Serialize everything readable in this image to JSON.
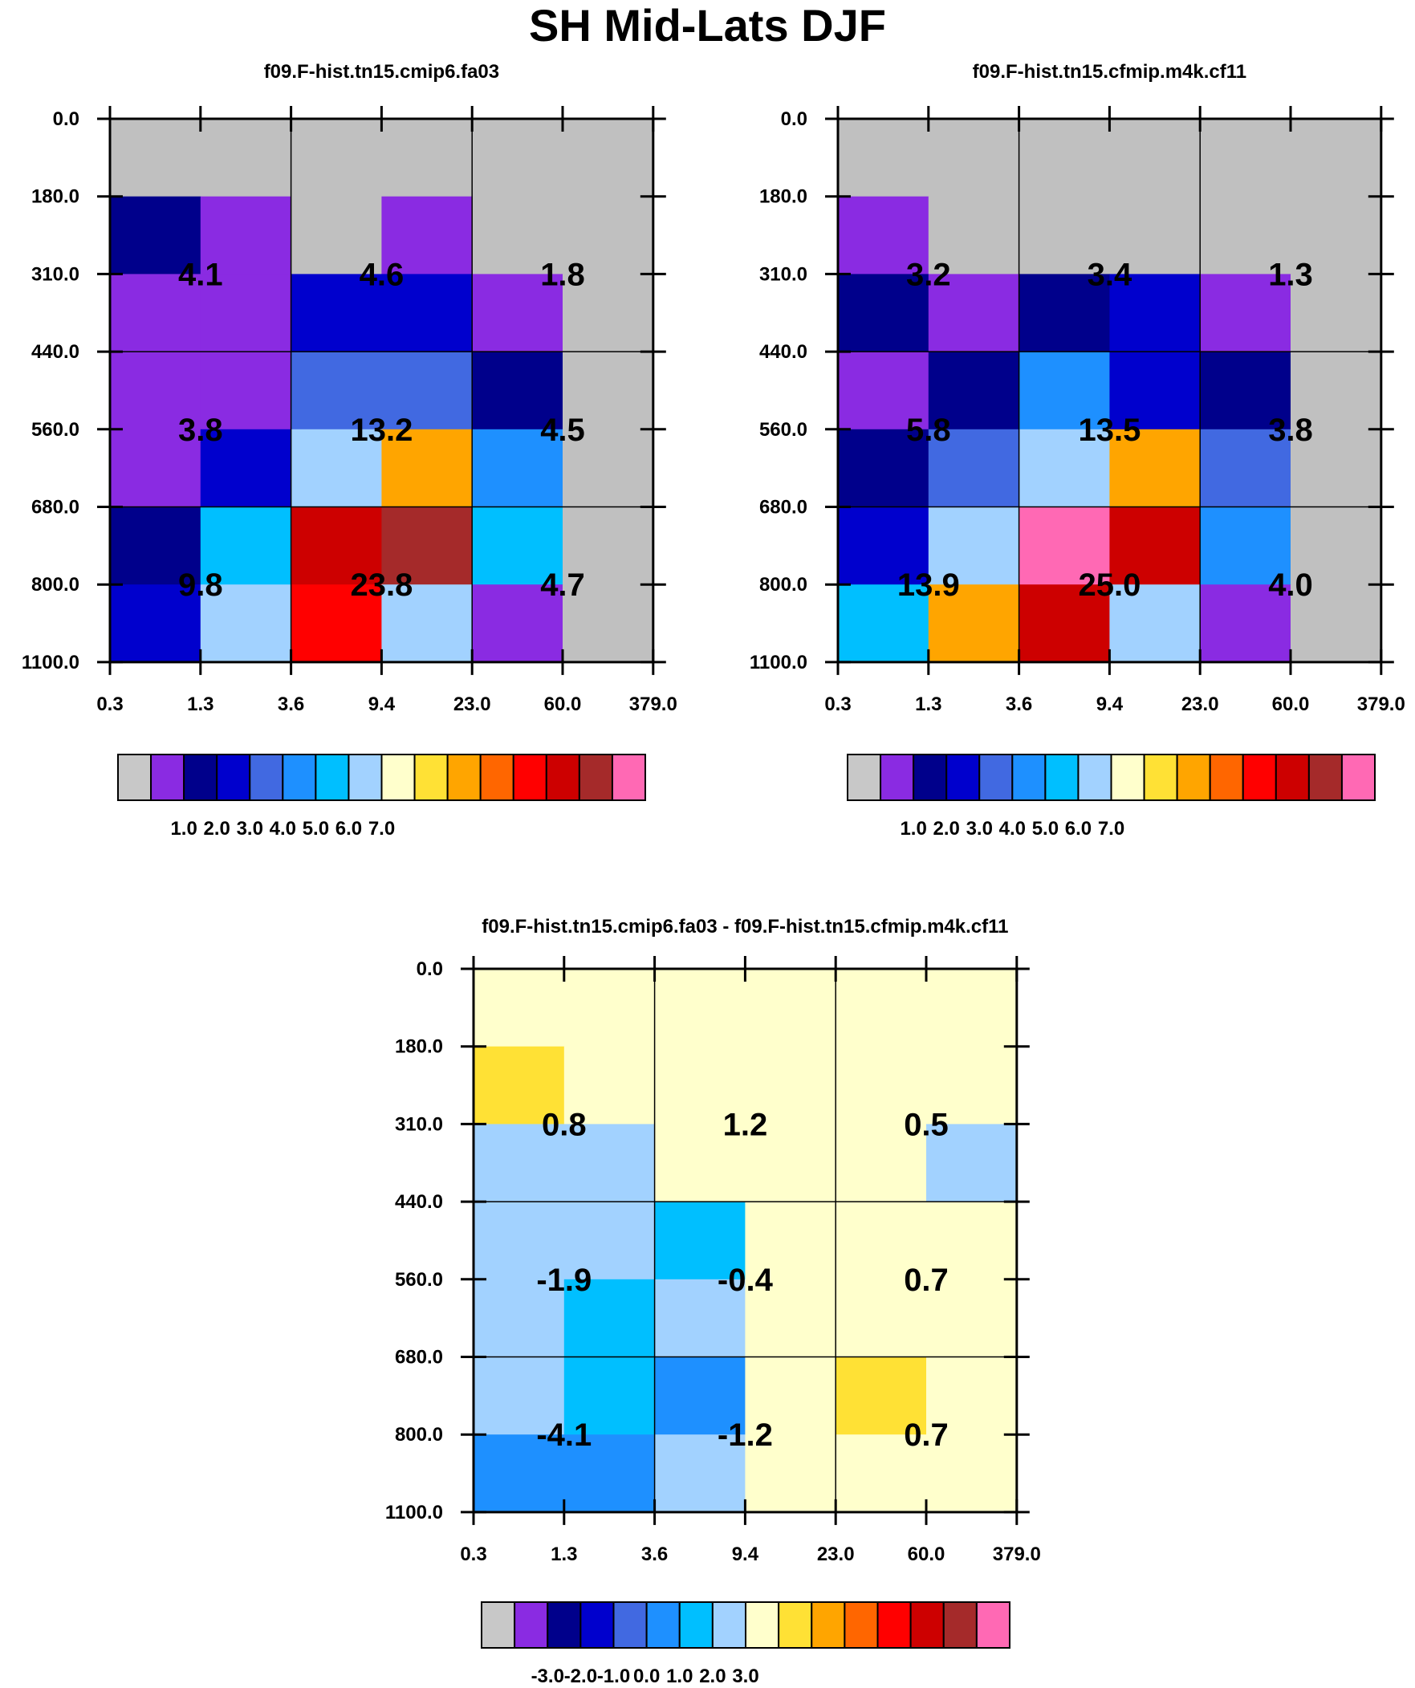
{
  "title": "SH Mid-Lats DJF",
  "chart_data": [
    {
      "type": "heatmap",
      "title": "f09.F-hist.tn15.cmip6.fa03",
      "x_edges": [
        "0.3",
        "1.3",
        "3.6",
        "9.4",
        "23.0",
        "60.0",
        "379.0"
      ],
      "y_edges": [
        "0.0",
        "180.0",
        "310.0",
        "440.0",
        "560.0",
        "680.0",
        "800.0",
        "1100.0"
      ],
      "cell_colors": [
        [
          "#c0c0c0",
          "#c0c0c0",
          "#c0c0c0",
          "#c0c0c0",
          "#c0c0c0",
          "#c0c0c0"
        ],
        [
          "#00008b",
          "#8a2be2",
          "#c0c0c0",
          "#8a2be2",
          "#c0c0c0",
          "#c0c0c0"
        ],
        [
          "#8a2be2",
          "#8a2be2",
          "#0000cd",
          "#0000cd",
          "#8a2be2",
          "#c0c0c0"
        ],
        [
          "#8a2be2",
          "#8a2be2",
          "#4169e1",
          "#4169e1",
          "#00008b",
          "#c0c0c0"
        ],
        [
          "#8a2be2",
          "#0000cd",
          "#a2d2ff",
          "#ffa500",
          "#1e90ff",
          "#c0c0c0"
        ],
        [
          "#00008b",
          "#00bfff",
          "#cd0000",
          "#a52a2a",
          "#00bfff",
          "#c0c0c0"
        ],
        [
          "#0000cd",
          "#a2d2ff",
          "#ff0000",
          "#a2d2ff",
          "#8a2be2",
          "#c0c0c0"
        ]
      ],
      "box_values": [
        [
          "4.1",
          "4.6",
          "1.8"
        ],
        [
          "3.8",
          "13.2",
          "4.5"
        ],
        [
          "9.8",
          "23.8",
          "4.7"
        ]
      ],
      "colorbar": {
        "colors": [
          "#c8c8c8",
          "#8a2be2",
          "#00008b",
          "#0000cd",
          "#4169e1",
          "#1e90ff",
          "#00bfff",
          "#a2d2ff",
          "#ffffcc",
          "#ffe135",
          "#ffa500",
          "#ff6600",
          "#ff0000",
          "#cd0000",
          "#a52a2a",
          "#ff69b4"
        ],
        "labels": [
          "1.0",
          "2.0",
          "3.0",
          "4.0",
          "5.0",
          "6.0",
          "7.0"
        ]
      }
    },
    {
      "type": "heatmap",
      "title": "f09.F-hist.tn15.cfmip.m4k.cf11",
      "x_edges": [
        "0.3",
        "1.3",
        "3.6",
        "9.4",
        "23.0",
        "60.0",
        "379.0"
      ],
      "y_edges": [
        "0.0",
        "180.0",
        "310.0",
        "440.0",
        "560.0",
        "680.0",
        "800.0",
        "1100.0"
      ],
      "cell_colors": [
        [
          "#c0c0c0",
          "#c0c0c0",
          "#c0c0c0",
          "#c0c0c0",
          "#c0c0c0",
          "#c0c0c0"
        ],
        [
          "#8a2be2",
          "#c0c0c0",
          "#c0c0c0",
          "#c0c0c0",
          "#c0c0c0",
          "#c0c0c0"
        ],
        [
          "#00008b",
          "#8a2be2",
          "#00008b",
          "#0000cd",
          "#8a2be2",
          "#c0c0c0"
        ],
        [
          "#8a2be2",
          "#00008b",
          "#1e90ff",
          "#0000cd",
          "#00008b",
          "#c0c0c0"
        ],
        [
          "#00008b",
          "#4169e1",
          "#a2d2ff",
          "#ffa500",
          "#4169e1",
          "#c0c0c0"
        ],
        [
          "#0000cd",
          "#a2d2ff",
          "#ff69b4",
          "#cd0000",
          "#1e90ff",
          "#c0c0c0"
        ],
        [
          "#00bfff",
          "#ffa500",
          "#cd0000",
          "#a2d2ff",
          "#8a2be2",
          "#c0c0c0"
        ]
      ],
      "box_values": [
        [
          "3.2",
          "3.4",
          "1.3"
        ],
        [
          "5.8",
          "13.5",
          "3.8"
        ],
        [
          "13.9",
          "25.0",
          "4.0"
        ]
      ],
      "colorbar": {
        "colors": [
          "#c8c8c8",
          "#8a2be2",
          "#00008b",
          "#0000cd",
          "#4169e1",
          "#1e90ff",
          "#00bfff",
          "#a2d2ff",
          "#ffffcc",
          "#ffe135",
          "#ffa500",
          "#ff6600",
          "#ff0000",
          "#cd0000",
          "#a52a2a",
          "#ff69b4"
        ],
        "labels": [
          "1.0",
          "2.0",
          "3.0",
          "4.0",
          "5.0",
          "6.0",
          "7.0"
        ]
      }
    },
    {
      "type": "heatmap",
      "title": "f09.F-hist.tn15.cmip6.fa03 - f09.F-hist.tn15.cfmip.m4k.cf11",
      "x_edges": [
        "0.3",
        "1.3",
        "3.6",
        "9.4",
        "23.0",
        "60.0",
        "379.0"
      ],
      "y_edges": [
        "0.0",
        "180.0",
        "310.0",
        "440.0",
        "560.0",
        "680.0",
        "800.0",
        "1100.0"
      ],
      "cell_colors": [
        [
          "#ffffcc",
          "#ffffcc",
          "#ffffcc",
          "#ffffcc",
          "#ffffcc",
          "#ffffcc"
        ],
        [
          "#ffe135",
          "#ffffcc",
          "#ffffcc",
          "#ffffcc",
          "#ffffcc",
          "#ffffcc"
        ],
        [
          "#a2d2ff",
          "#a2d2ff",
          "#ffffcc",
          "#ffffcc",
          "#ffffcc",
          "#a2d2ff"
        ],
        [
          "#a2d2ff",
          "#a2d2ff",
          "#00bfff",
          "#ffffcc",
          "#ffffcc",
          "#ffffcc"
        ],
        [
          "#a2d2ff",
          "#00bfff",
          "#a2d2ff",
          "#ffffcc",
          "#ffffcc",
          "#ffffcc"
        ],
        [
          "#a2d2ff",
          "#00bfff",
          "#1e90ff",
          "#ffffcc",
          "#ffe135",
          "#ffffcc"
        ],
        [
          "#1e90ff",
          "#1e90ff",
          "#a2d2ff",
          "#ffffcc",
          "#ffffcc",
          "#ffffcc"
        ]
      ],
      "box_values": [
        [
          "0.8",
          "1.2",
          "0.5"
        ],
        [
          "-1.9",
          "-0.4",
          "0.7"
        ],
        [
          "-4.1",
          "-1.2",
          "0.7"
        ]
      ],
      "colorbar": {
        "colors": [
          "#c8c8c8",
          "#8a2be2",
          "#00008b",
          "#0000cd",
          "#4169e1",
          "#1e90ff",
          "#00bfff",
          "#a2d2ff",
          "#ffffcc",
          "#ffe135",
          "#ffa500",
          "#ff6600",
          "#ff0000",
          "#cd0000",
          "#a52a2a",
          "#ff69b4"
        ],
        "labels": [
          "-3.0",
          "-2.0",
          "-1.0",
          "0.0",
          "1.0",
          "2.0",
          "3.0"
        ]
      }
    }
  ]
}
